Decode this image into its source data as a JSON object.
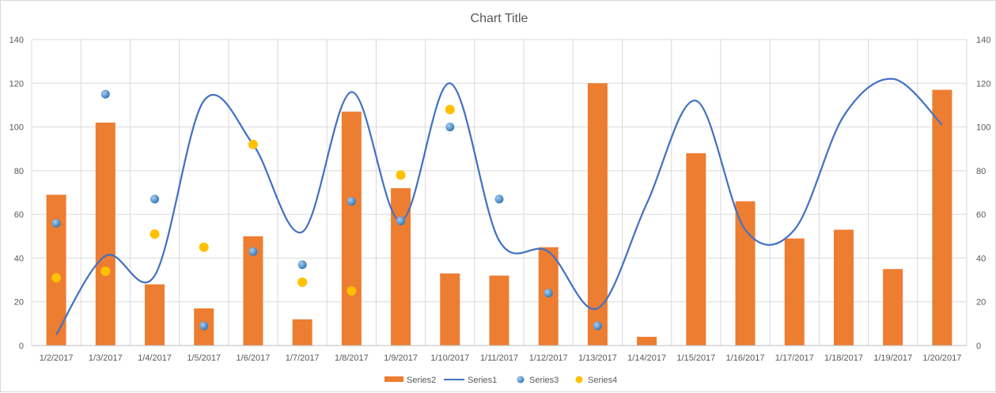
{
  "chart_data": {
    "type": "bar",
    "title": "Chart Title",
    "categories": [
      "1/2/2017",
      "1/3/2017",
      "1/4/2017",
      "1/5/2017",
      "1/6/2017",
      "1/7/2017",
      "1/8/2017",
      "1/9/2017",
      "1/10/2017",
      "1/11/2017",
      "1/12/2017",
      "1/13/2017",
      "1/14/2017",
      "1/15/2017",
      "1/16/2017",
      "1/17/2017",
      "1/18/2017",
      "1/19/2017",
      "1/20/2017"
    ],
    "ylim": [
      0,
      140
    ],
    "y_ticks": [
      "0",
      "20",
      "40",
      "60",
      "80",
      "100",
      "120",
      "140"
    ],
    "secondary_ylim": [
      0,
      140
    ],
    "secondary_y_ticks": [
      "0",
      "20",
      "40",
      "60",
      "80",
      "100",
      "120",
      "140"
    ],
    "grid": true,
    "legend_position": "bottom",
    "series": [
      {
        "name": "Series2",
        "type": "bar",
        "color": "#ed7d31",
        "values": [
          69,
          102,
          28,
          17,
          50,
          12,
          107,
          72,
          33,
          32,
          45,
          120,
          4,
          88,
          66,
          49,
          53,
          35,
          117
        ]
      },
      {
        "name": "Series1",
        "type": "line",
        "color": "#4472c4",
        "values": [
          5,
          41,
          32,
          112,
          92,
          52,
          116,
          57,
          120,
          48,
          43,
          17,
          65,
          112,
          53,
          53,
          105,
          122,
          101
        ]
      },
      {
        "name": "Series3",
        "type": "scatter",
        "color": "#5b9bd5",
        "values": [
          56,
          115,
          67,
          9,
          43,
          37,
          66,
          57,
          100,
          67,
          24,
          9,
          null,
          null,
          null,
          null,
          null,
          null,
          null
        ]
      },
      {
        "name": "Series4",
        "type": "scatter",
        "color": "#ffc000",
        "values": [
          31,
          34,
          51,
          45,
          92,
          29,
          25,
          78,
          108,
          null,
          null,
          null,
          null,
          null,
          null,
          null,
          null,
          null,
          null
        ]
      }
    ]
  }
}
